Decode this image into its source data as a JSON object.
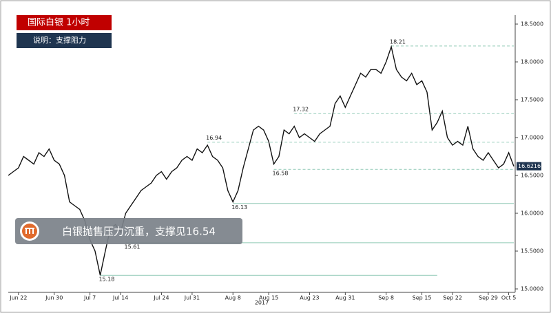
{
  "chart_data": {
    "type": "line",
    "title": "国际白银  1小时",
    "subtitle": "说明：支撑阻力",
    "annotation": "白银抛售压力沉重，支撑见16.54",
    "x_axis_year": "2017",
    "categories": [
      null,
      null,
      "Jun 22",
      null,
      null,
      null,
      null,
      null,
      null,
      "Jun 30",
      null,
      null,
      null,
      null,
      null,
      null,
      "Jul 7",
      null,
      null,
      null,
      null,
      null,
      "Jul 14",
      null,
      null,
      null,
      null,
      null,
      null,
      null,
      "Jul 24",
      null,
      null,
      null,
      null,
      null,
      "Jul 31",
      null,
      null,
      null,
      null,
      null,
      null,
      null,
      "Aug 8",
      null,
      null,
      null,
      null,
      null,
      null,
      "Aug 15",
      null,
      null,
      null,
      null,
      null,
      null,
      null,
      "Aug 23",
      null,
      null,
      null,
      null,
      null,
      null,
      "Aug 31",
      null,
      null,
      null,
      null,
      null,
      null,
      null,
      "Sep 8",
      null,
      null,
      null,
      null,
      null,
      null,
      "Sep 15",
      null,
      null,
      null,
      null,
      null,
      "Sep 22",
      null,
      null,
      null,
      null,
      null,
      null,
      "Sep 29",
      null,
      null,
      null,
      "Oct 5",
      null
    ],
    "series": [
      {
        "name": "Silver",
        "color": "#111111",
        "values": [
          16.5,
          16.55,
          16.6,
          16.75,
          16.7,
          16.65,
          16.8,
          16.75,
          16.85,
          16.7,
          16.65,
          16.5,
          16.15,
          16.1,
          16.05,
          15.9,
          15.65,
          15.5,
          15.18,
          15.5,
          15.8,
          15.85,
          15.75,
          16.0,
          16.1,
          16.2,
          16.3,
          16.35,
          16.4,
          16.5,
          16.55,
          16.45,
          16.55,
          16.6,
          16.7,
          16.75,
          16.7,
          16.85,
          16.8,
          16.9,
          16.75,
          16.7,
          16.6,
          16.3,
          16.15,
          16.3,
          16.6,
          16.85,
          17.1,
          17.15,
          17.1,
          16.95,
          16.65,
          16.75,
          17.1,
          17.05,
          17.15,
          17.0,
          17.05,
          17.0,
          16.95,
          17.05,
          17.1,
          17.15,
          17.45,
          17.55,
          17.4,
          17.55,
          17.7,
          17.85,
          17.8,
          17.9,
          17.9,
          17.85,
          18.0,
          18.2,
          17.9,
          17.8,
          17.75,
          17.85,
          17.7,
          17.75,
          17.6,
          17.1,
          17.2,
          17.35,
          17.0,
          16.9,
          16.95,
          16.9,
          17.15,
          16.85,
          16.75,
          16.7,
          16.8,
          16.7,
          16.6,
          16.65,
          16.8,
          16.62
        ]
      }
    ],
    "last_value": 16.6216,
    "levels": [
      {
        "value": 18.21,
        "style": "dashed",
        "x_range": [
          75,
          99
        ]
      },
      {
        "value": 17.32,
        "style": "dashed",
        "x_range": [
          56,
          99
        ]
      },
      {
        "value": 16.94,
        "style": "dashed",
        "x_range": [
          39,
          99
        ]
      },
      {
        "value": 16.58,
        "style": "dashed",
        "x_range": [
          52,
          99
        ]
      },
      {
        "value": 16.13,
        "style": "solid",
        "x_range": [
          44,
          99
        ]
      },
      {
        "value": 15.61,
        "style": "solid",
        "x_range": [
          23,
          99
        ]
      },
      {
        "value": 15.18,
        "style": "solid",
        "x_range": [
          18,
          84
        ]
      }
    ],
    "ylim": [
      15.0,
      18.5
    ],
    "yticks": [
      {
        "value": 15.0,
        "label": "15.0000"
      },
      {
        "value": 15.5,
        "label": "15.5000"
      },
      {
        "value": 16.0,
        "label": "16.0000"
      },
      {
        "value": 16.5,
        "label": "16.5000"
      },
      {
        "value": 17.0,
        "label": "17.0000"
      },
      {
        "value": 17.5,
        "label": "17.5000"
      },
      {
        "value": 18.0,
        "label": "18.0000"
      },
      {
        "value": 18.5,
        "label": "18.5000"
      }
    ],
    "grid": false
  }
}
